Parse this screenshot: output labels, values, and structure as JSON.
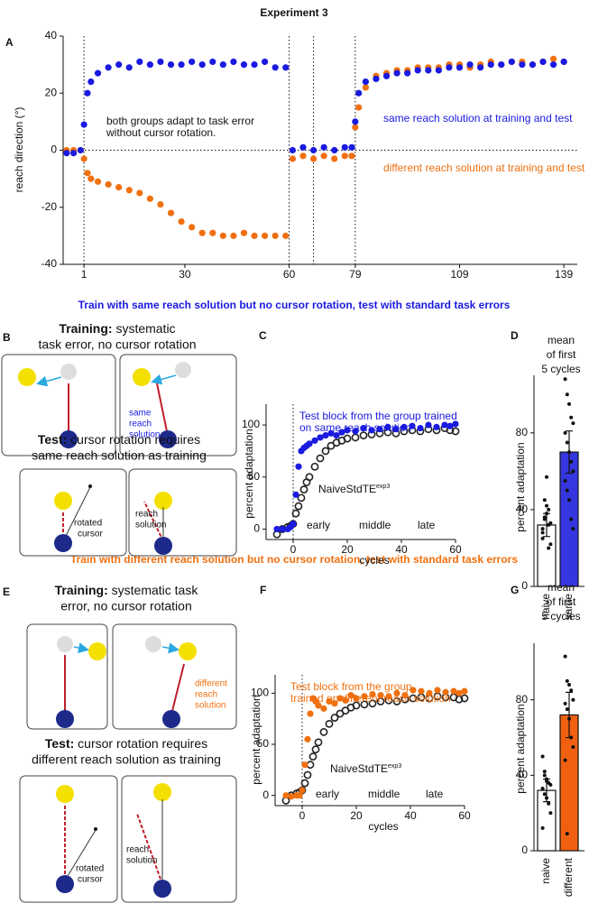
{
  "chart_data": [
    {
      "type": "scatter",
      "title": "Experiment 3",
      "ylabel": "reach direction (°)",
      "xlim": [
        -5,
        140
      ],
      "ylim": [
        -40,
        40
      ],
      "xticks": [
        1,
        30,
        60,
        79,
        109,
        139
      ],
      "yticks": [
        -40,
        -20,
        0,
        20,
        40
      ],
      "vlines": [
        1,
        60,
        67,
        79
      ],
      "hlines": [
        0
      ],
      "series": [
        {
          "color": "#f07010",
          "marker": "filled",
          "x": [
            -4,
            -2,
            0,
            1,
            2,
            3,
            5,
            8,
            11,
            14,
            17,
            20,
            23,
            26,
            29,
            32,
            35,
            38,
            41,
            44,
            47,
            50,
            53,
            56,
            59,
            61,
            64,
            67,
            70,
            73,
            76,
            78,
            79,
            80,
            82,
            85,
            88,
            91,
            94,
            97,
            100,
            103,
            106,
            109,
            112,
            115,
            118,
            121,
            124,
            127,
            130,
            133,
            136,
            139
          ],
          "values": [
            0,
            0,
            0,
            -3,
            -8,
            -10,
            -11,
            -12,
            -13,
            -14,
            -15,
            -17,
            -19,
            -22,
            -25,
            -27,
            -29,
            -29,
            -30,
            -30,
            -29,
            -30,
            -30,
            -30,
            -30,
            -3,
            -2,
            -3,
            -2,
            -3,
            -2,
            -2,
            8,
            15,
            22,
            26,
            27,
            28,
            28,
            29,
            29,
            29,
            30,
            30,
            29,
            30,
            31,
            30,
            31,
            31,
            30,
            31,
            32,
            31
          ]
        },
        {
          "color": "#1a1ae0",
          "marker": "filled",
          "x": [
            -4,
            -2,
            0,
            1,
            2,
            3,
            5,
            8,
            11,
            14,
            17,
            20,
            23,
            26,
            29,
            32,
            35,
            38,
            41,
            44,
            47,
            50,
            53,
            56,
            59,
            61,
            64,
            67,
            70,
            73,
            76,
            78,
            79,
            80,
            82,
            85,
            88,
            91,
            94,
            97,
            100,
            103,
            106,
            109,
            112,
            115,
            118,
            121,
            124,
            127,
            130,
            133,
            136,
            139
          ],
          "values": [
            -1,
            -1,
            0,
            9,
            20,
            24,
            27,
            29,
            30,
            29,
            31,
            30,
            31,
            30,
            30,
            31,
            30,
            31,
            30,
            31,
            30,
            30,
            31,
            29,
            29,
            0,
            1,
            0,
            1,
            0,
            1,
            1,
            10,
            20,
            24,
            25,
            26,
            27,
            27,
            28,
            28,
            28,
            29,
            29,
            30,
            29,
            30,
            30,
            31,
            30,
            30,
            31,
            30,
            31
          ]
        }
      ],
      "annotations": [
        {
          "lines": [
            "both groups adapt to task error",
            "without cursor rotation."
          ],
          "color": "#111111"
        },
        {
          "lines": [
            "same reach solution at training and test"
          ],
          "color": "#1a1ae0"
        },
        {
          "lines": [
            "different reach solution at training and test"
          ],
          "color": "#f07010"
        }
      ]
    },
    {
      "type": "scatter",
      "xlabel": "cycles",
      "ylabel": "percent adaptation",
      "xlim": [
        -10,
        60
      ],
      "ylim": [
        -10,
        120
      ],
      "xticks": [
        0,
        20,
        40,
        60
      ],
      "yticks": [
        0,
        50,
        100
      ],
      "vlines": [
        0
      ],
      "series": [
        {
          "color": "#222222",
          "marker": "open",
          "x": [
            -6,
            -4,
            -2,
            -1,
            0,
            1,
            2,
            3,
            4,
            5,
            6,
            8,
            10,
            12,
            14,
            16,
            18,
            20,
            23,
            26,
            29,
            32,
            35,
            38,
            41,
            44,
            47,
            50,
            53,
            56,
            58,
            60
          ],
          "values": [
            -5,
            0,
            2,
            3,
            5,
            15,
            22,
            30,
            38,
            45,
            50,
            60,
            68,
            75,
            80,
            83,
            85,
            87,
            88,
            90,
            91,
            92,
            93,
            92,
            94,
            95,
            94,
            96,
            95,
            97,
            95,
            94
          ]
        },
        {
          "color": "#1a1ae0",
          "marker": "filled",
          "x": [
            -6,
            -4,
            -2,
            -1,
            0,
            1,
            2,
            3,
            4,
            5,
            6,
            8,
            10,
            12,
            14,
            16,
            18,
            20,
            23,
            26,
            29,
            32,
            35,
            38,
            41,
            44,
            47,
            50,
            53,
            56,
            58,
            60
          ],
          "values": [
            0,
            0,
            0,
            2,
            5,
            33,
            60,
            75,
            78,
            80,
            82,
            85,
            88,
            90,
            92,
            90,
            93,
            95,
            94,
            97,
            95,
            96,
            98,
            96,
            98,
            99,
            97,
            100,
            98,
            100,
            99,
            101
          ]
        }
      ],
      "annotations": [
        {
          "lines": [
            "Test block from the group trained",
            "on same reach solution"
          ],
          "color": "#1a1ae0"
        },
        {
          "text": "NaiveStdTE",
          "sup": "exp3"
        },
        {
          "text": "early"
        },
        {
          "text": "middle"
        },
        {
          "text": "late"
        }
      ]
    },
    {
      "type": "bar",
      "title": [
        "mean",
        "of first",
        "5 cycles"
      ],
      "ylabel": "percent adaptation",
      "categories": [
        "naive",
        "same"
      ],
      "values": [
        32,
        70
      ],
      "errors": [
        6,
        11
      ],
      "colors": [
        "#ffffff",
        "#3636e0"
      ],
      "points": [
        [
          30,
          35,
          38,
          40,
          22,
          25,
          45,
          57,
          32,
          33,
          28,
          36,
          42,
          20
        ],
        [
          108,
          100,
          95,
          88,
          85,
          80,
          75,
          70,
          65,
          60,
          55,
          50,
          45,
          35,
          30
        ]
      ],
      "ylim": [
        0,
        110
      ],
      "yticks": [
        0,
        40,
        80
      ]
    },
    {
      "type": "scatter",
      "xlabel": "cycles",
      "ylabel": "percent adaptation",
      "xlim": [
        -10,
        60
      ],
      "ylim": [
        -10,
        118
      ],
      "xticks": [
        0,
        20,
        40,
        60
      ],
      "yticks": [
        0,
        50,
        100
      ],
      "vlines": [
        0
      ],
      "series": [
        {
          "color": "#222222",
          "marker": "open",
          "x": [
            -6,
            -4,
            -2,
            -1,
            0,
            1,
            2,
            3,
            4,
            5,
            6,
            8,
            10,
            12,
            14,
            16,
            18,
            20,
            23,
            26,
            29,
            32,
            35,
            38,
            41,
            44,
            47,
            50,
            53,
            56,
            58,
            60
          ],
          "values": [
            -5,
            0,
            2,
            3,
            5,
            12,
            20,
            30,
            38,
            45,
            52,
            62,
            70,
            76,
            80,
            83,
            86,
            88,
            89,
            90,
            92,
            93,
            92,
            94,
            95,
            96,
            95,
            97,
            96,
            96,
            94,
            95
          ]
        },
        {
          "color": "#f07010",
          "marker": "filled",
          "x": [
            -6,
            -4,
            -2,
            -1,
            0,
            1,
            2,
            3,
            4,
            5,
            6,
            8,
            10,
            12,
            14,
            16,
            18,
            20,
            23,
            26,
            29,
            32,
            35,
            38,
            41,
            44,
            47,
            50,
            53,
            56,
            58,
            60
          ],
          "values": [
            0,
            -1,
            0,
            0,
            5,
            30,
            55,
            80,
            95,
            92,
            88,
            85,
            92,
            90,
            95,
            93,
            98,
            95,
            97,
            99,
            98,
            97,
            100,
            98,
            103,
            102,
            100,
            103,
            101,
            102,
            100,
            102
          ]
        }
      ],
      "annotations": [
        {
          "lines": [
            "Test block from the group",
            "trained on different reach solution"
          ],
          "color": "#f07010"
        },
        {
          "text": "NaiveStdTE",
          "sup": "exp3"
        },
        {
          "text": "early"
        },
        {
          "text": "middle"
        },
        {
          "text": "late"
        }
      ]
    },
    {
      "type": "bar",
      "title": [
        "mean",
        "of first",
        "5 cycles"
      ],
      "ylabel": "percent adaptation",
      "categories": [
        "naive",
        "different"
      ],
      "values": [
        32,
        72
      ],
      "errors": [
        6,
        12
      ],
      "colors": [
        "#ffffff",
        "#f06010"
      ],
      "points": [
        [
          50,
          42,
          38,
          36,
          35,
          33,
          30,
          28,
          25,
          20,
          12,
          40,
          37
        ],
        [
          103,
          90,
          88,
          85,
          80,
          78,
          75,
          70,
          60,
          55,
          48,
          9
        ]
      ],
      "ylim": [
        0,
        110
      ],
      "yticks": [
        0,
        40,
        80
      ]
    }
  ],
  "figure": {
    "panel_labels": [
      "A",
      "B",
      "C",
      "D",
      "E",
      "F",
      "G"
    ],
    "headings": [
      "Train with same reach solution but no cursor rotation, test with standard task errors",
      "Train with different reach solution but no cursor rotation, test with standard task errors"
    ],
    "diagrams": [
      {
        "training": {
          "label": "Training:",
          "lines": [
            "systematic",
            "task error, no cursor rotation"
          ]
        },
        "training_note": [
          "same",
          "reach",
          "solution"
        ],
        "test": {
          "label": "Test:",
          "lines": [
            "cursor rotation requires",
            "same reach solution as training"
          ]
        },
        "rotated_cursor": [
          "rotated",
          "cursor"
        ],
        "reach_solution": [
          "reach",
          "solution"
        ]
      },
      {
        "training": {
          "label": "Training:",
          "lines": [
            "systematic task",
            "error, no cursor rotation"
          ]
        },
        "training_note": [
          "different",
          "reach",
          "solution"
        ],
        "test": {
          "label": "Test:",
          "lines": [
            "cursor rotation requires",
            "different reach solution as training"
          ]
        },
        "rotated_cursor": [
          "rotated",
          "cursor"
        ],
        "reach_solution": [
          "reach",
          "solution"
        ]
      }
    ]
  }
}
